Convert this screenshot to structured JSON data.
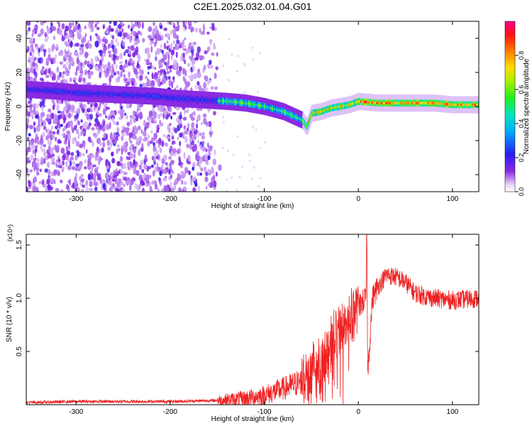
{
  "title": "C2E1.2025.032.01.04.G01",
  "chart_data": [
    {
      "type": "heatmap",
      "xlabel": "Height of straight line (km)",
      "ylabel": "Frequency (Hz)",
      "xlim": [
        -353,
        128
      ],
      "ylim": [
        -50,
        50
      ],
      "x_ticks": [
        -300,
        -200,
        -100,
        0,
        100
      ],
      "x_tick_labels": [
        "-300",
        "-200",
        "-100",
        "0",
        "100"
      ],
      "y_ticks": [
        -40,
        -20,
        0,
        20,
        40
      ],
      "y_tick_labels": [
        "-40",
        "-20",
        "0",
        "20",
        "40"
      ],
      "colorbar": {
        "label": "Normalized spectral amplitude",
        "range": [
          0,
          1
        ],
        "ticks": [
          0.0,
          0.2,
          0.4,
          0.6,
          0.8
        ],
        "tick_labels": [
          "0.0",
          "0.2",
          "0.4",
          "0.6",
          "0.8"
        ],
        "colormap": "rainbow (violet-blue-cyan-green-yellow-red-magenta)"
      },
      "ridge": {
        "x": [
          -353,
          -320,
          -300,
          -215,
          -200,
          -170,
          -140,
          -120,
          -100,
          -80,
          -60,
          -55,
          -50,
          -40,
          -30,
          -20,
          -10,
          0,
          20,
          50,
          80,
          100,
          128
        ],
        "y": [
          10,
          9,
          8,
          6,
          5,
          4,
          3,
          2,
          0,
          -3,
          -8,
          -12,
          -4,
          -3,
          -1,
          0,
          1,
          3,
          2,
          2,
          2,
          1,
          1
        ]
      },
      "noise_region_x": [
        -353,
        -150
      ],
      "grid": false
    },
    {
      "type": "line",
      "xlabel": "Height of straight line (km)",
      "ylabel": "SNR (10 * v/v)",
      "y_multiplier": "(x10⁴)",
      "xlim": [
        -353,
        128
      ],
      "ylim": [
        0,
        1.6
      ],
      "x_ticks": [
        -300,
        -200,
        -100,
        0,
        100
      ],
      "x_tick_labels": [
        "-300",
        "-200",
        "-100",
        "0",
        "100"
      ],
      "y_ticks": [
        0.5,
        1.0,
        1.5
      ],
      "y_tick_labels": [
        "0.5",
        "1.0",
        "1.5"
      ],
      "color": "#ee2222",
      "series": [
        {
          "x": [
            -353,
            -300,
            -250,
            -200,
            -150,
            -120,
            -100,
            -80,
            -60,
            -50,
            -40,
            -30,
            -20,
            -10,
            0,
            8,
            9,
            10,
            15,
            20,
            30,
            40,
            50,
            60,
            70,
            80,
            100,
            128
          ],
          "y": [
            0.02,
            0.03,
            0.03,
            0.03,
            0.04,
            0.06,
            0.09,
            0.15,
            0.22,
            0.28,
            0.38,
            0.52,
            0.7,
            0.82,
            0.92,
            1.0,
            1.62,
            0.3,
            1.0,
            1.1,
            1.22,
            1.2,
            1.15,
            1.05,
            1.02,
            1.0,
            0.98,
            1.0
          ]
        }
      ],
      "grid": false
    }
  ]
}
